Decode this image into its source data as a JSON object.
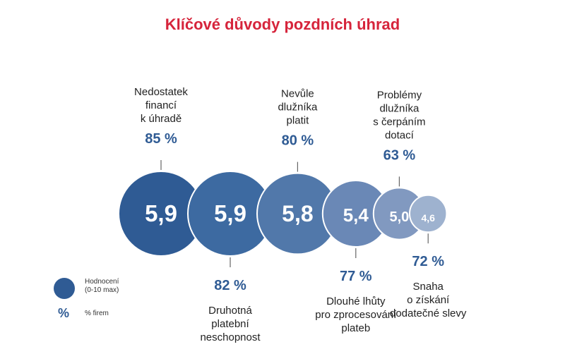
{
  "chart_data": {
    "type": "bubble",
    "title": "Klíčové důvody pozdních úhrad",
    "items": [
      {
        "label": [
          "Nedostatek",
          "financí",
          "k úhradě"
        ],
        "score": 5.9,
        "score_text": "5,9",
        "pct": 85,
        "pct_text": "85 %",
        "position": "top",
        "color": "#2f5b94"
      },
      {
        "label": [
          "Druhotná",
          "platební",
          "neschopnost"
        ],
        "score": 5.9,
        "score_text": "5,9",
        "pct": 82,
        "pct_text": "82 %",
        "position": "bottom",
        "color": "#3d6aa1"
      },
      {
        "label": [
          "Nevůle",
          "dlužníka",
          "platit"
        ],
        "score": 5.8,
        "score_text": "5,8",
        "pct": 80,
        "pct_text": "80 %",
        "position": "top",
        "color": "#5178aa"
      },
      {
        "label": [
          "Dlouhé lhůty",
          "pro zprocesování",
          "plateb"
        ],
        "score": 5.4,
        "score_text": "5,4",
        "pct": 77,
        "pct_text": "77 %",
        "position": "bottom",
        "color": "#6a88b6"
      },
      {
        "label": [
          "Problémy",
          "dlužníka",
          "s čerpáním",
          "dotací"
        ],
        "score": 5.0,
        "score_text": "5,0",
        "pct": 63,
        "pct_text": "63 %",
        "position": "top",
        "color": "#8199c0"
      },
      {
        "label": [
          "Snaha",
          "o získání",
          "dodatečné slevy"
        ],
        "score": 4.6,
        "score_text": "4,6",
        "pct": 72,
        "pct_text": "72 %",
        "position": "bottom",
        "color": "#9eb2cf"
      }
    ],
    "legend": {
      "circle_label": [
        "Hodnocení",
        "(0-10 max)"
      ],
      "pct_symbol": "%",
      "pct_label": "% firem"
    }
  }
}
